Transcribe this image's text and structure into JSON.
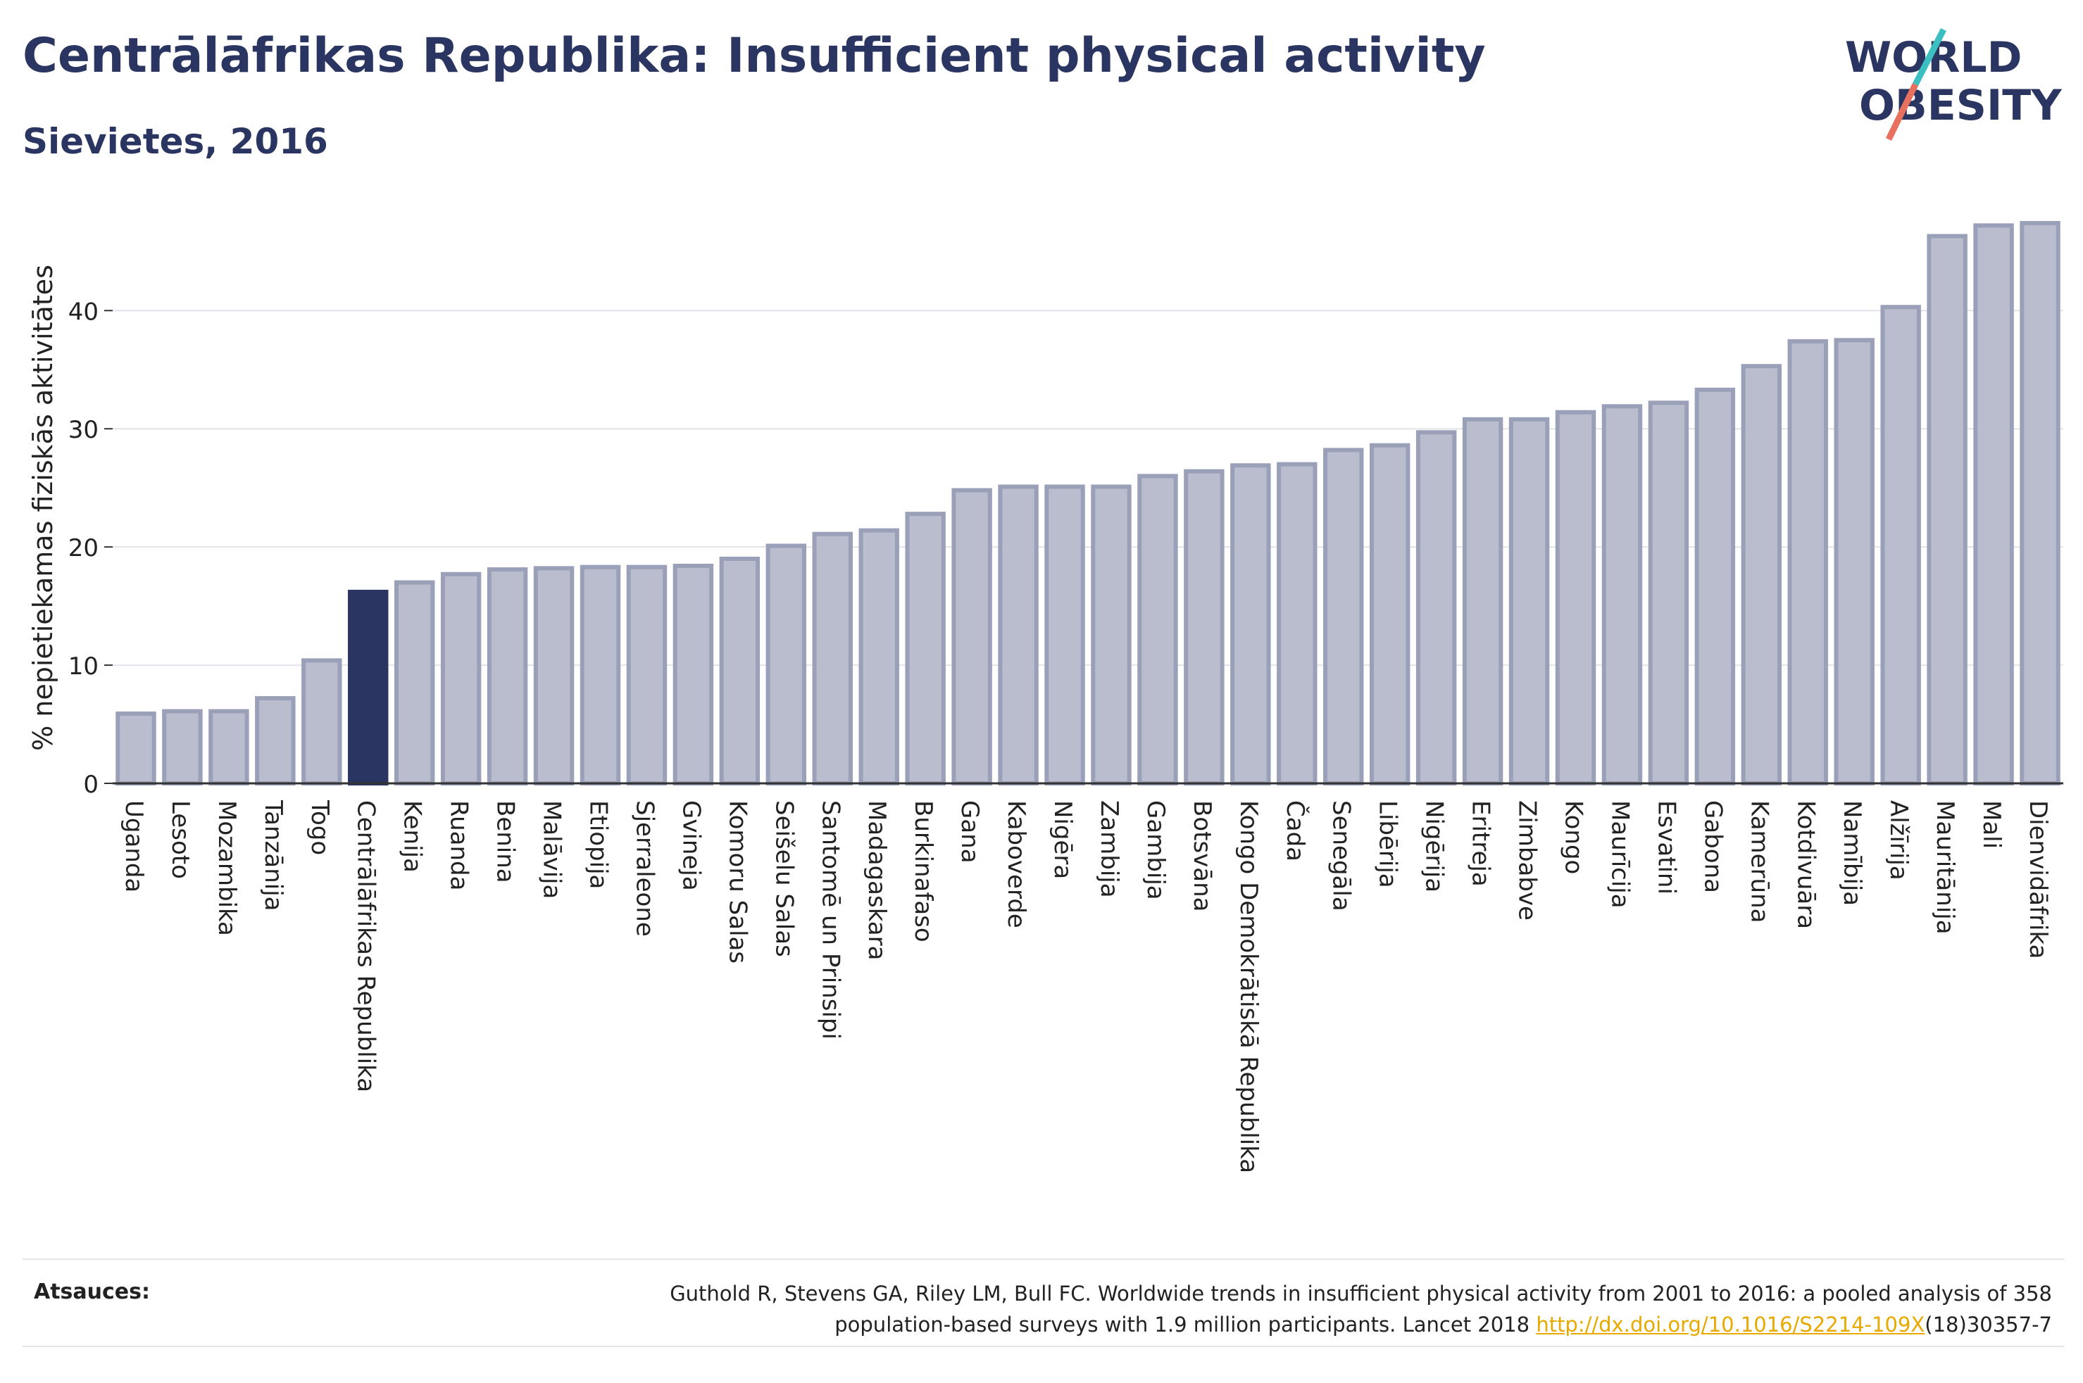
{
  "header": {
    "title": "Centrālāfrikas Republika: Insufficient physical activity",
    "subtitle": "Sievietes, 2016"
  },
  "logo": {
    "line1": "WORLD",
    "line2": "OBESITY",
    "colors": {
      "text": "#2b3561",
      "slash_teal": "#3bbfc0",
      "slash_coral": "#e8705f"
    }
  },
  "colors": {
    "bar_fill": "#b9bdcd",
    "bar_stroke": "#9aa0b8",
    "highlight_fill": "#2b3561",
    "grid": "#e3e3e8",
    "axis": "#333333"
  },
  "chart_data": {
    "type": "bar",
    "title": "Centrālāfrikas Republika: Insufficient physical activity",
    "subtitle": "Sievietes, 2016",
    "xlabel": "",
    "ylabel": "% nepietiekamas fiziskās aktivitātes",
    "ylim": [
      0,
      50
    ],
    "yticks": [
      0,
      10,
      20,
      30,
      40
    ],
    "grid": true,
    "highlight": "Centrālāfrikas Republika",
    "categories": [
      "Uganda",
      "Lesoto",
      "Mozambika",
      "Tanzānija",
      "Togo",
      "Centrālāfrikas Republika",
      "Kenija",
      "Ruanda",
      "Benina",
      "Malāvija",
      "Etiopija",
      "Sjerraleone",
      "Gvineja",
      "Komoru Salas",
      "Seišelu Salas",
      "Santomē un Prinsipi",
      "Madagaskara",
      "Burkinafaso",
      "Gana",
      "Kaboverde",
      "Nigēra",
      "Zambija",
      "Gambija",
      "Botsvāna",
      "Kongo Demokrātiskā Republika",
      "Čada",
      "Senegāla",
      "Libērija",
      "Nigērija",
      "Eritreja",
      "Zimbabve",
      "Kongo",
      "Maurīcija",
      "Esvatini",
      "Gabona",
      "Kamerūna",
      "Kotdivuāra",
      "Namībija",
      "Alžīrija",
      "Mauritānija",
      "Mali",
      "Dienvidāfrika"
    ],
    "values": [
      5.9,
      6.1,
      6.1,
      7.2,
      10.4,
      16.2,
      17.0,
      17.7,
      18.1,
      18.2,
      18.3,
      18.3,
      18.4,
      19.0,
      20.1,
      21.1,
      21.4,
      22.8,
      24.8,
      25.1,
      25.1,
      25.1,
      26.0,
      26.4,
      26.9,
      27.0,
      28.2,
      28.6,
      29.7,
      30.8,
      30.8,
      31.4,
      31.9,
      32.2,
      33.3,
      35.3,
      37.4,
      37.5,
      40.3,
      46.3,
      47.2,
      47.4
    ]
  },
  "footer": {
    "label": "Atsauces:",
    "ref_text_1": "Guthold R, Stevens GA, Riley LM, Bull FC. Worldwide trends in insufficient physical activity from 2001 to 2016: a pooled analysis of 358",
    "ref_text_2": "population-based surveys with 1.9 million participants. Lancet 2018 ",
    "ref_link": "http://dx.doi.org/10.1016/S2214-109X",
    "ref_text_3": "(18)30357-7"
  }
}
